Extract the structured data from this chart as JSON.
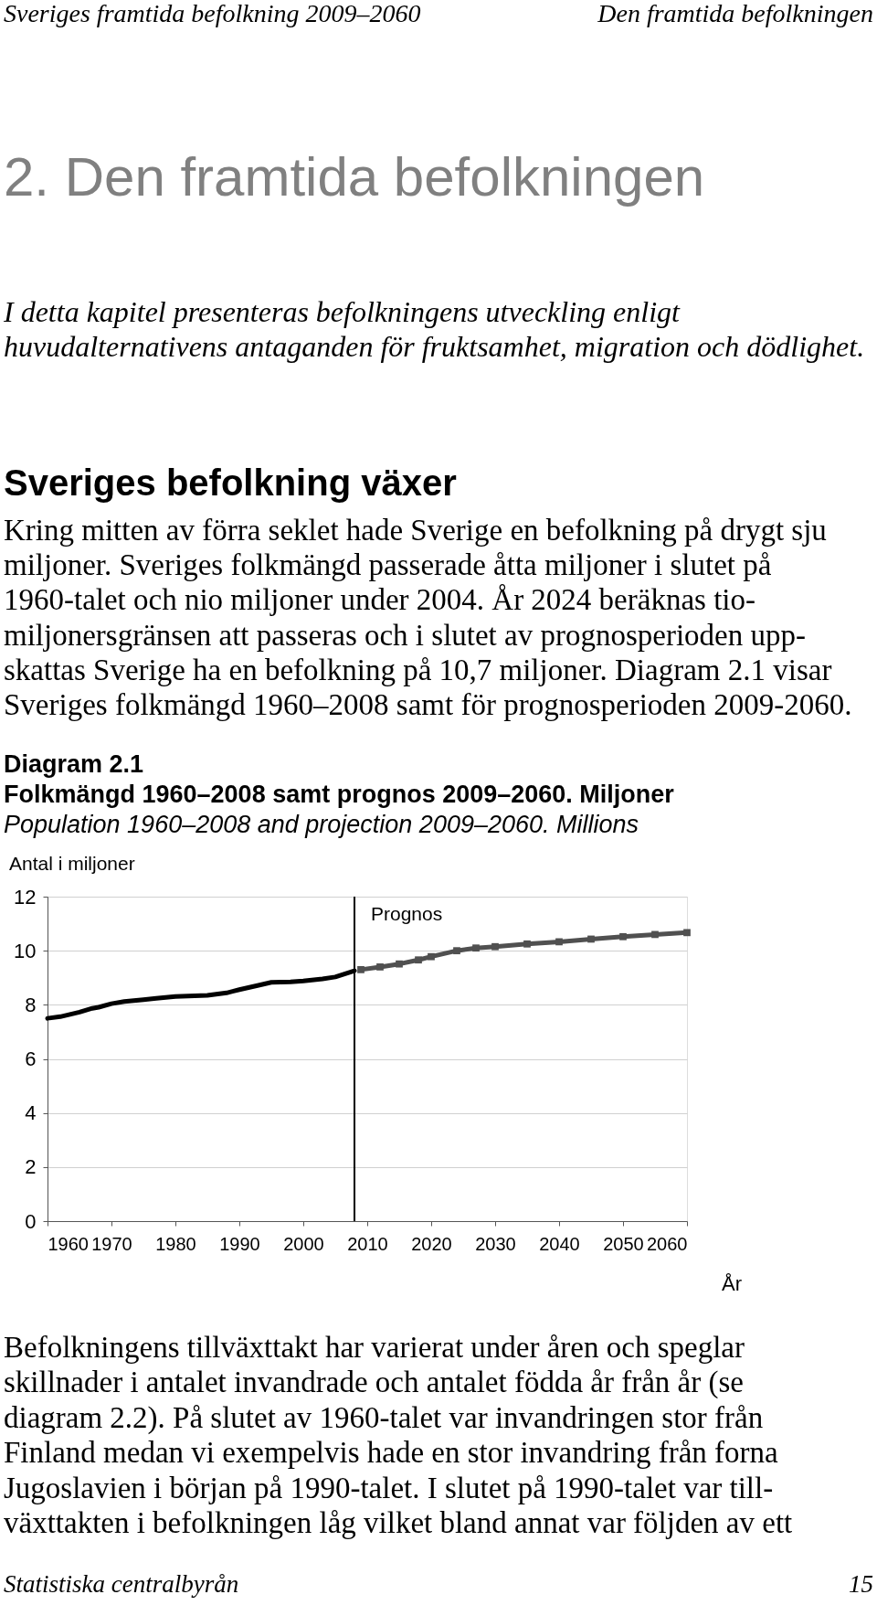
{
  "chart_data": {
    "type": "line",
    "title": "Folkmängd 1960–2008 samt prognos 2009–2060. Miljoner",
    "subtitle": "Population 1960–2008 and projection 2009–2060. Millions",
    "xlabel": "År",
    "ylabel": "Antal i miljoner",
    "annotations": [
      "Sveriges framtida befolkning 2009–2060",
      "Den framtida befolkningen",
      "2. Den framtida befolkningen",
      "I detta kapitel presenteras befolkningens utveckling enligt\nhuvudalternativens antaganden för fruktsamhet, migration och dödlighet.",
      "Sveriges befolkning växer",
      "Kring mitten av förra seklet hade Sverige en befolkning på drygt sju\nmiljoner. Sveriges folkmängd passerade åtta miljoner i slutet på\n1960-talet och nio miljoner under 2004. År 2024 beräknas tio-\nmiljonersgränsen att passeras och i slutet av prognosperioden upp-\nskattas Sverige ha en befolkning på 10,7 miljoner. Diagram 2.1 visar\nSveriges folkmängd 1960–2008 samt för prognosperioden 2009-2060.",
      "Diagram 2.1",
      "Befolkningens tillväxttakt har varierat under åren och speglar\nskillnader i antalet invandrade och antalet födda år från år (se\ndiagram 2.2). På slutet av 1960-talet var invandringen stor från\nFinland medan vi exempelvis hade en stor invandring från forna\nJugoslavien i början på 1990-talet. I slutet på 1990-talet var till-\nväxttakten i befolkningen låg vilket bland annat var följden av ett",
      "Statistiska centralbyrån",
      "15"
    ],
    "series": [
      {
        "color": "#000000",
        "marker": "none",
        "x": [
          1960,
          1962,
          1965,
          1967,
          1968,
          1970,
          1972,
          1975,
          1977,
          1980,
          1985,
          1988,
          1990,
          1993,
          1995,
          1998,
          2000,
          2003,
          2005,
          2008
        ],
        "values": [
          7.5,
          7.56,
          7.73,
          7.87,
          7.91,
          8.04,
          8.12,
          8.19,
          8.24,
          8.31,
          8.35,
          8.44,
          8.56,
          8.72,
          8.83,
          8.85,
          8.88,
          8.96,
          9.03,
          9.26
        ]
      },
      {
        "color": "#505050",
        "marker": "square",
        "x": [
          2009,
          2012,
          2015,
          2018,
          2020,
          2024,
          2027,
          2030,
          2035,
          2040,
          2045,
          2050,
          2055,
          2060
        ],
        "values": [
          9.3,
          9.4,
          9.51,
          9.66,
          9.78,
          10.0,
          10.1,
          10.15,
          10.25,
          10.33,
          10.43,
          10.52,
          10.6,
          10.67
        ]
      }
    ],
    "xlim": [
      1960,
      2060
    ],
    "xticks": [
      1960,
      1970,
      1980,
      1990,
      2000,
      2010,
      2020,
      2030,
      2040,
      2050,
      2060
    ],
    "ylim": [
      0,
      12
    ],
    "yticks": [
      0,
      2,
      4,
      6,
      8,
      10,
      12
    ],
    "grid": "y",
    "ref_lines": [
      {
        "axis": "x",
        "value": 2008,
        "label": "Prognos",
        "color": "#000000"
      }
    ]
  }
}
